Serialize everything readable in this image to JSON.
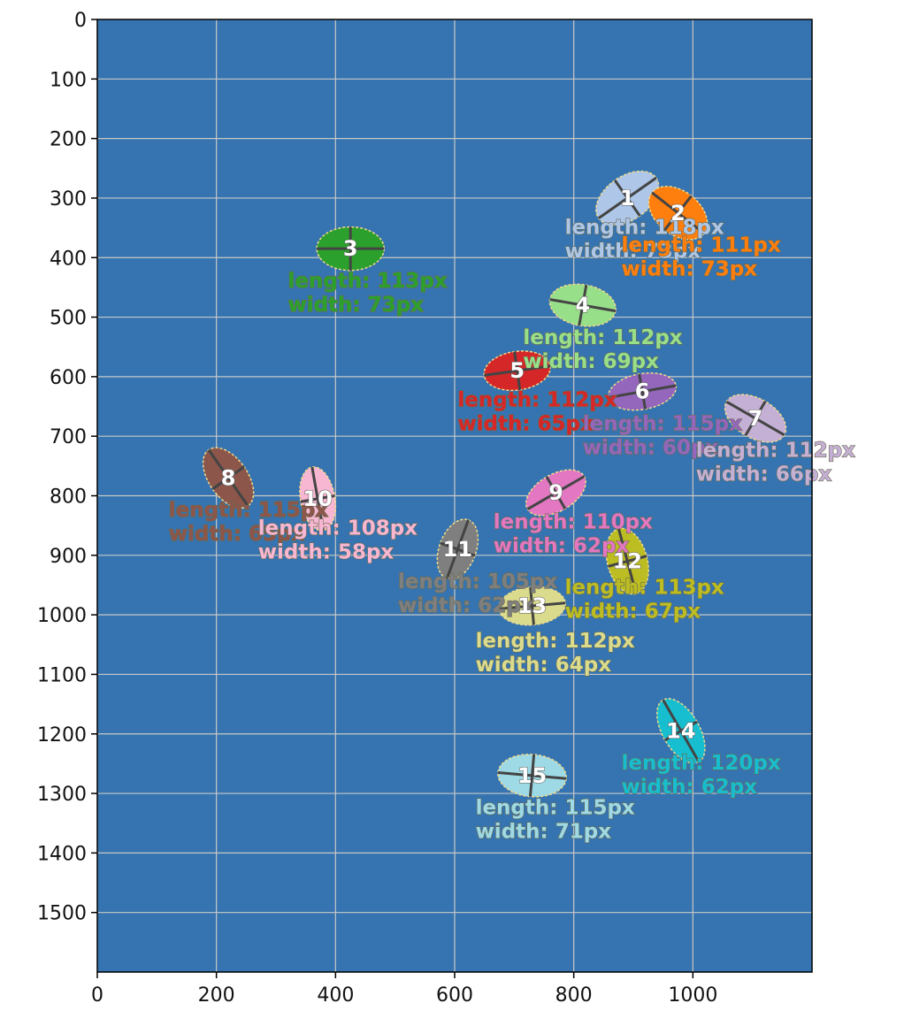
{
  "chart_data": {
    "type": "scatter",
    "title": "",
    "xlabel": "",
    "ylabel": "",
    "xlim": [
      0,
      1200
    ],
    "ylim": [
      1600,
      0
    ],
    "y_inverted": true,
    "grid": true,
    "background_color": "#3574b0",
    "x_ticks": [
      "0",
      "200",
      "400",
      "600",
      "800",
      "1000"
    ],
    "y_ticks": [
      "0",
      "100",
      "200",
      "300",
      "400",
      "500",
      "600",
      "700",
      "800",
      "900",
      "1000",
      "1100",
      "1200",
      "1300",
      "1400",
      "1500"
    ],
    "objects": [
      {
        "id": "1",
        "x": 890,
        "y": 300,
        "angle": -35,
        "length": 118,
        "width": 73,
        "color": "#aec7e8",
        "length_label": "length: 118px",
        "width_label": "width: 73px",
        "label_x": 785,
        "label_y": 360
      },
      {
        "id": "2",
        "x": 975,
        "y": 325,
        "angle": 38,
        "length": 111,
        "width": 73,
        "color": "#ff7f0e",
        "length_label": "length: 111px",
        "width_label": "width: 73px",
        "label_x": 880,
        "label_y": 390
      },
      {
        "id": "3",
        "x": 425,
        "y": 385,
        "angle": 0,
        "length": 113,
        "width": 73,
        "color": "#2ca02c",
        "length_label": "length: 113px",
        "width_label": "width: 73px",
        "label_x": 320,
        "label_y": 450
      },
      {
        "id": "4",
        "x": 815,
        "y": 480,
        "angle": 10,
        "length": 112,
        "width": 69,
        "color": "#98df8a",
        "length_label": "length: 112px",
        "width_label": "width: 69px",
        "label_x": 715,
        "label_y": 545
      },
      {
        "id": "5",
        "x": 705,
        "y": 590,
        "angle": -8,
        "length": 112,
        "width": 65,
        "color": "#d62728",
        "length_label": "length: 112px",
        "width_label": "width: 65px",
        "label_x": 605,
        "label_y": 650
      },
      {
        "id": "6",
        "x": 915,
        "y": 625,
        "angle": -10,
        "length": 115,
        "width": 60,
        "color": "#9467bd",
        "length_label": "length: 115px",
        "width_label": "width: 60px",
        "label_x": 815,
        "label_y": 690
      },
      {
        "id": "7",
        "x": 1105,
        "y": 670,
        "angle": 30,
        "length": 112,
        "width": 66,
        "color": "#c5b0d5",
        "length_label": "length: 112px",
        "width_label": "width: 66px",
        "label_x": 1005,
        "label_y": 735
      },
      {
        "id": "8",
        "x": 220,
        "y": 770,
        "angle": 55,
        "length": 115,
        "width": 65,
        "color": "#8c564b",
        "length_label": "length: 115px",
        "width_label": "width: 65px",
        "label_x": 120,
        "label_y": 835
      },
      {
        "id": "9",
        "x": 770,
        "y": 795,
        "angle": -30,
        "length": 110,
        "width": 62,
        "color": "#e377c2",
        "length_label": "length: 110px",
        "width_label": "width: 62px",
        "label_x": 665,
        "label_y": 855
      },
      {
        "id": "10",
        "x": 370,
        "y": 805,
        "angle": 80,
        "length": 108,
        "width": 58,
        "color": "#f7b6d2",
        "length_label": "length: 108px",
        "width_label": "width: 58px",
        "label_x": 270,
        "label_y": 865
      },
      {
        "id": "11",
        "x": 605,
        "y": 890,
        "angle": -70,
        "length": 105,
        "width": 62,
        "color": "#7f7f7f",
        "length_label": "length: 105px",
        "width_label": "width: 62px",
        "label_x": 505,
        "label_y": 955
      },
      {
        "id": "12",
        "x": 890,
        "y": 910,
        "angle": 75,
        "length": 113,
        "width": 67,
        "color": "#bcbd22",
        "length_label": "length: 113px",
        "width_label": "width: 67px",
        "label_x": 785,
        "label_y": 965
      },
      {
        "id": "13",
        "x": 730,
        "y": 985,
        "angle": -5,
        "length": 112,
        "width": 64,
        "color": "#dbdb8d",
        "length_label": "length: 112px",
        "width_label": "width: 64px",
        "label_x": 635,
        "label_y": 1055
      },
      {
        "id": "14",
        "x": 980,
        "y": 1195,
        "angle": 60,
        "length": 120,
        "width": 62,
        "color": "#17becf",
        "length_label": "length: 120px",
        "width_label": "width: 62px",
        "label_x": 880,
        "label_y": 1260
      },
      {
        "id": "15",
        "x": 730,
        "y": 1270,
        "angle": 5,
        "length": 115,
        "width": 71,
        "color": "#9edae5",
        "length_label": "length: 115px",
        "width_label": "width: 71px",
        "label_x": 635,
        "label_y": 1335
      }
    ]
  }
}
